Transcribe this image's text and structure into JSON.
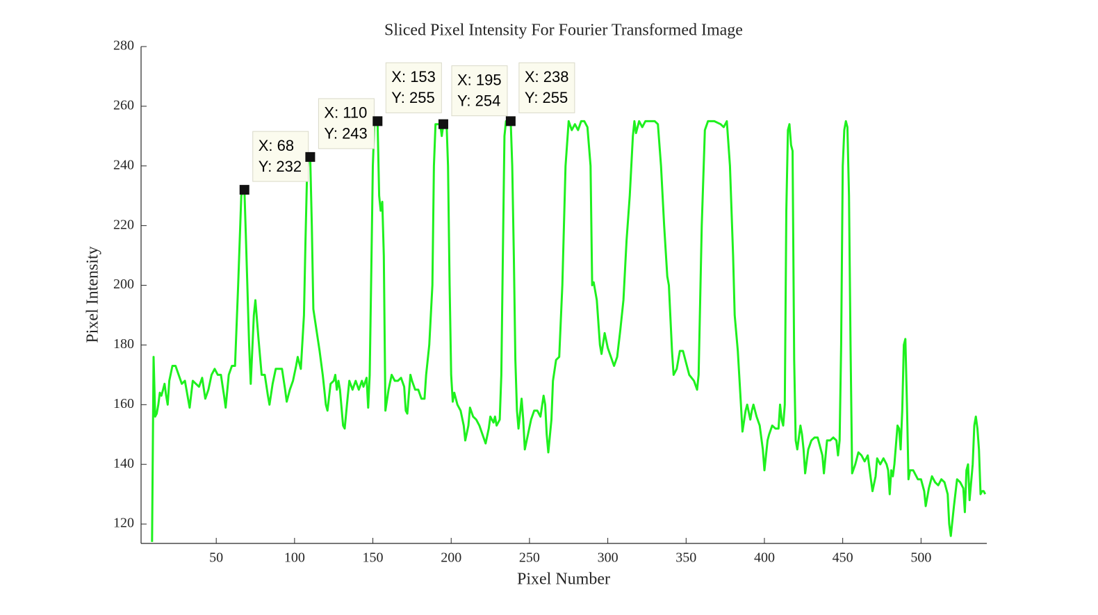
{
  "chart_data": {
    "type": "line",
    "title": "Sliced Pixel Intensity For Fourier Transformed Image",
    "x_label": "Pixel Number",
    "y_label": "Pixel Intensity",
    "xlim": [
      2,
      542
    ],
    "ylim": [
      113.5,
      280
    ],
    "xticks": [
      50,
      100,
      150,
      200,
      250,
      300,
      350,
      400,
      450,
      500
    ],
    "yticks": [
      120,
      140,
      160,
      180,
      200,
      220,
      240,
      260,
      280
    ],
    "series": [
      {
        "color": "#1ef01e",
        "x": [
          9,
          10,
          11,
          12,
          13,
          14,
          15,
          16,
          17,
          18,
          19,
          20,
          22,
          24,
          26,
          28,
          30,
          32,
          33,
          35,
          37,
          39,
          41,
          43,
          45,
          47,
          49,
          51,
          53,
          55,
          56,
          58,
          60,
          62,
          64,
          66,
          67,
          68,
          69,
          71,
          72,
          74,
          75,
          77,
          79,
          81,
          83,
          84,
          86,
          88,
          90,
          92,
          94,
          95,
          97,
          99,
          101,
          102,
          103,
          104,
          106,
          107,
          108,
          109,
          110,
          111,
          112,
          114,
          116,
          118,
          119,
          120,
          121,
          123,
          125,
          126,
          127,
          128,
          129,
          131,
          132,
          134,
          135,
          137,
          139,
          141,
          143,
          144,
          146,
          147,
          148,
          149,
          150,
          151,
          152,
          153,
          154,
          155,
          156,
          157,
          158,
          160,
          162,
          164,
          166,
          168,
          170,
          171,
          172,
          174,
          175,
          177,
          179,
          181,
          183,
          184,
          186,
          188,
          189,
          190,
          191,
          193,
          194,
          195,
          196,
          197,
          198,
          199,
          200,
          201,
          202,
          204,
          206,
          208,
          209,
          211,
          212,
          214,
          216,
          218,
          220,
          222,
          224,
          225,
          227,
          228,
          229,
          231,
          232,
          233,
          234,
          235,
          236,
          238,
          239,
          240,
          241,
          242,
          243,
          245,
          246,
          247,
          249,
          251,
          253,
          255,
          257,
          259,
          260,
          261,
          262,
          264,
          265,
          267,
          269,
          271,
          273,
          275,
          277,
          279,
          281,
          283,
          285,
          287,
          289,
          290,
          291,
          293,
          295,
          296,
          298,
          300,
          302,
          304,
          306,
          308,
          310,
          312,
          314,
          316,
          317,
          318,
          320,
          322,
          324,
          326,
          330,
          332,
          334,
          336,
          338,
          339,
          341,
          342,
          344,
          346,
          348,
          350,
          352,
          355,
          357,
          358,
          360,
          362,
          364,
          366,
          368,
          372,
          374,
          376,
          378,
          380,
          381,
          383,
          385,
          386,
          388,
          389,
          391,
          392,
          393,
          395,
          397,
          399,
          400,
          402,
          403,
          405,
          407,
          409,
          410,
          411,
          412,
          413,
          414,
          415,
          416,
          417,
          418,
          419,
          420,
          421,
          423,
          424,
          425,
          426,
          428,
          430,
          432,
          434,
          436,
          437,
          438,
          440,
          442,
          444,
          446,
          447,
          448,
          449,
          450,
          451,
          452,
          453,
          454,
          455,
          456,
          458,
          460,
          462,
          464,
          466,
          468,
          469,
          471,
          472,
          474,
          476,
          478,
          479,
          480,
          481,
          482,
          483,
          485,
          486,
          487,
          488,
          489,
          490,
          491,
          492,
          493,
          495,
          496,
          498,
          500,
          502,
          503,
          505,
          507,
          509,
          511,
          513,
          515,
          517,
          518,
          519,
          521,
          523,
          525,
          527,
          528,
          529,
          530,
          531,
          533,
          534,
          535,
          536,
          537,
          538,
          539,
          540,
          541
        ],
        "values": [
          114,
          176,
          156,
          157,
          160,
          164,
          163,
          165,
          167,
          163,
          160,
          168,
          173,
          173,
          170,
          167,
          168,
          162,
          159,
          168,
          167,
          166,
          169,
          162,
          165,
          170,
          172,
          170,
          170,
          163,
          159,
          170,
          173,
          173,
          200,
          230,
          232,
          232,
          215,
          180,
          167,
          190,
          195,
          182,
          170,
          170,
          163,
          160,
          167,
          172,
          172,
          172,
          165,
          161,
          165,
          168,
          173,
          176,
          174,
          172,
          190,
          215,
          238,
          243,
          243,
          220,
          192,
          185,
          178,
          170,
          165,
          160,
          158,
          167,
          168,
          170,
          165,
          168,
          165,
          153,
          152,
          163,
          168,
          165,
          168,
          165,
          168,
          166,
          169,
          159,
          170,
          205,
          240,
          255,
          255,
          255,
          230,
          225,
          228,
          210,
          158,
          165,
          170,
          168,
          168,
          169,
          166,
          158,
          157,
          170,
          168,
          165,
          165,
          162,
          162,
          170,
          180,
          200,
          240,
          254,
          254,
          254,
          250,
          254,
          254,
          255,
          240,
          200,
          170,
          161,
          164,
          160,
          158,
          153,
          148,
          153,
          159,
          156,
          155,
          153,
          150,
          147,
          152,
          156,
          154,
          156,
          153,
          155,
          170,
          210,
          250,
          255,
          255,
          255,
          240,
          210,
          175,
          158,
          152,
          162,
          155,
          145,
          150,
          155,
          158,
          158,
          156,
          163,
          160,
          150,
          144,
          155,
          168,
          175,
          176,
          200,
          240,
          255,
          252,
          254,
          252,
          255,
          255,
          253,
          240,
          200,
          201,
          195,
          180,
          177,
          184,
          179,
          176,
          173,
          176,
          185,
          195,
          215,
          230,
          250,
          255,
          251,
          255,
          253,
          255,
          255,
          255,
          254,
          240,
          220,
          203,
          200,
          178,
          170,
          172,
          178,
          178,
          174,
          170,
          168,
          165,
          170,
          220,
          252,
          255,
          255,
          255,
          254,
          253,
          255,
          240,
          210,
          190,
          178,
          160,
          151,
          158,
          160,
          155,
          158,
          160,
          156,
          153,
          145,
          138,
          148,
          150,
          153,
          152,
          152,
          160,
          155,
          153,
          160,
          225,
          252,
          254,
          247,
          245,
          175,
          148,
          145,
          153,
          150,
          145,
          137,
          145,
          148,
          149,
          149,
          145,
          143,
          137,
          148,
          148,
          149,
          148,
          143,
          148,
          180,
          240,
          252,
          255,
          253,
          230,
          180,
          137,
          140,
          144,
          143,
          141,
          143,
          135,
          131,
          136,
          142,
          140,
          142,
          140,
          138,
          130,
          138,
          136,
          140,
          153,
          152,
          145,
          158,
          180,
          182,
          160,
          135,
          138,
          138,
          137,
          135,
          135,
          131,
          126,
          132,
          136,
          134,
          133,
          135,
          134,
          130,
          120,
          116,
          126,
          135,
          134,
          132,
          124,
          138,
          140,
          128,
          140,
          153,
          156,
          152,
          145,
          130,
          131,
          131,
          130
        ]
      }
    ],
    "datatips": [
      {
        "x": 68,
        "y": 232,
        "x_label": "X: 68",
        "y_label": "Y: 232"
      },
      {
        "x": 110,
        "y": 243,
        "x_label": "X: 110",
        "y_label": "Y: 243"
      },
      {
        "x": 153,
        "y": 255,
        "x_label": "X: 153",
        "y_label": "Y: 255"
      },
      {
        "x": 195,
        "y": 254,
        "x_label": "X: 195",
        "y_label": "Y: 254"
      },
      {
        "x": 238,
        "y": 255,
        "x_label": "X: 238",
        "y_label": "Y: 255"
      }
    ]
  }
}
